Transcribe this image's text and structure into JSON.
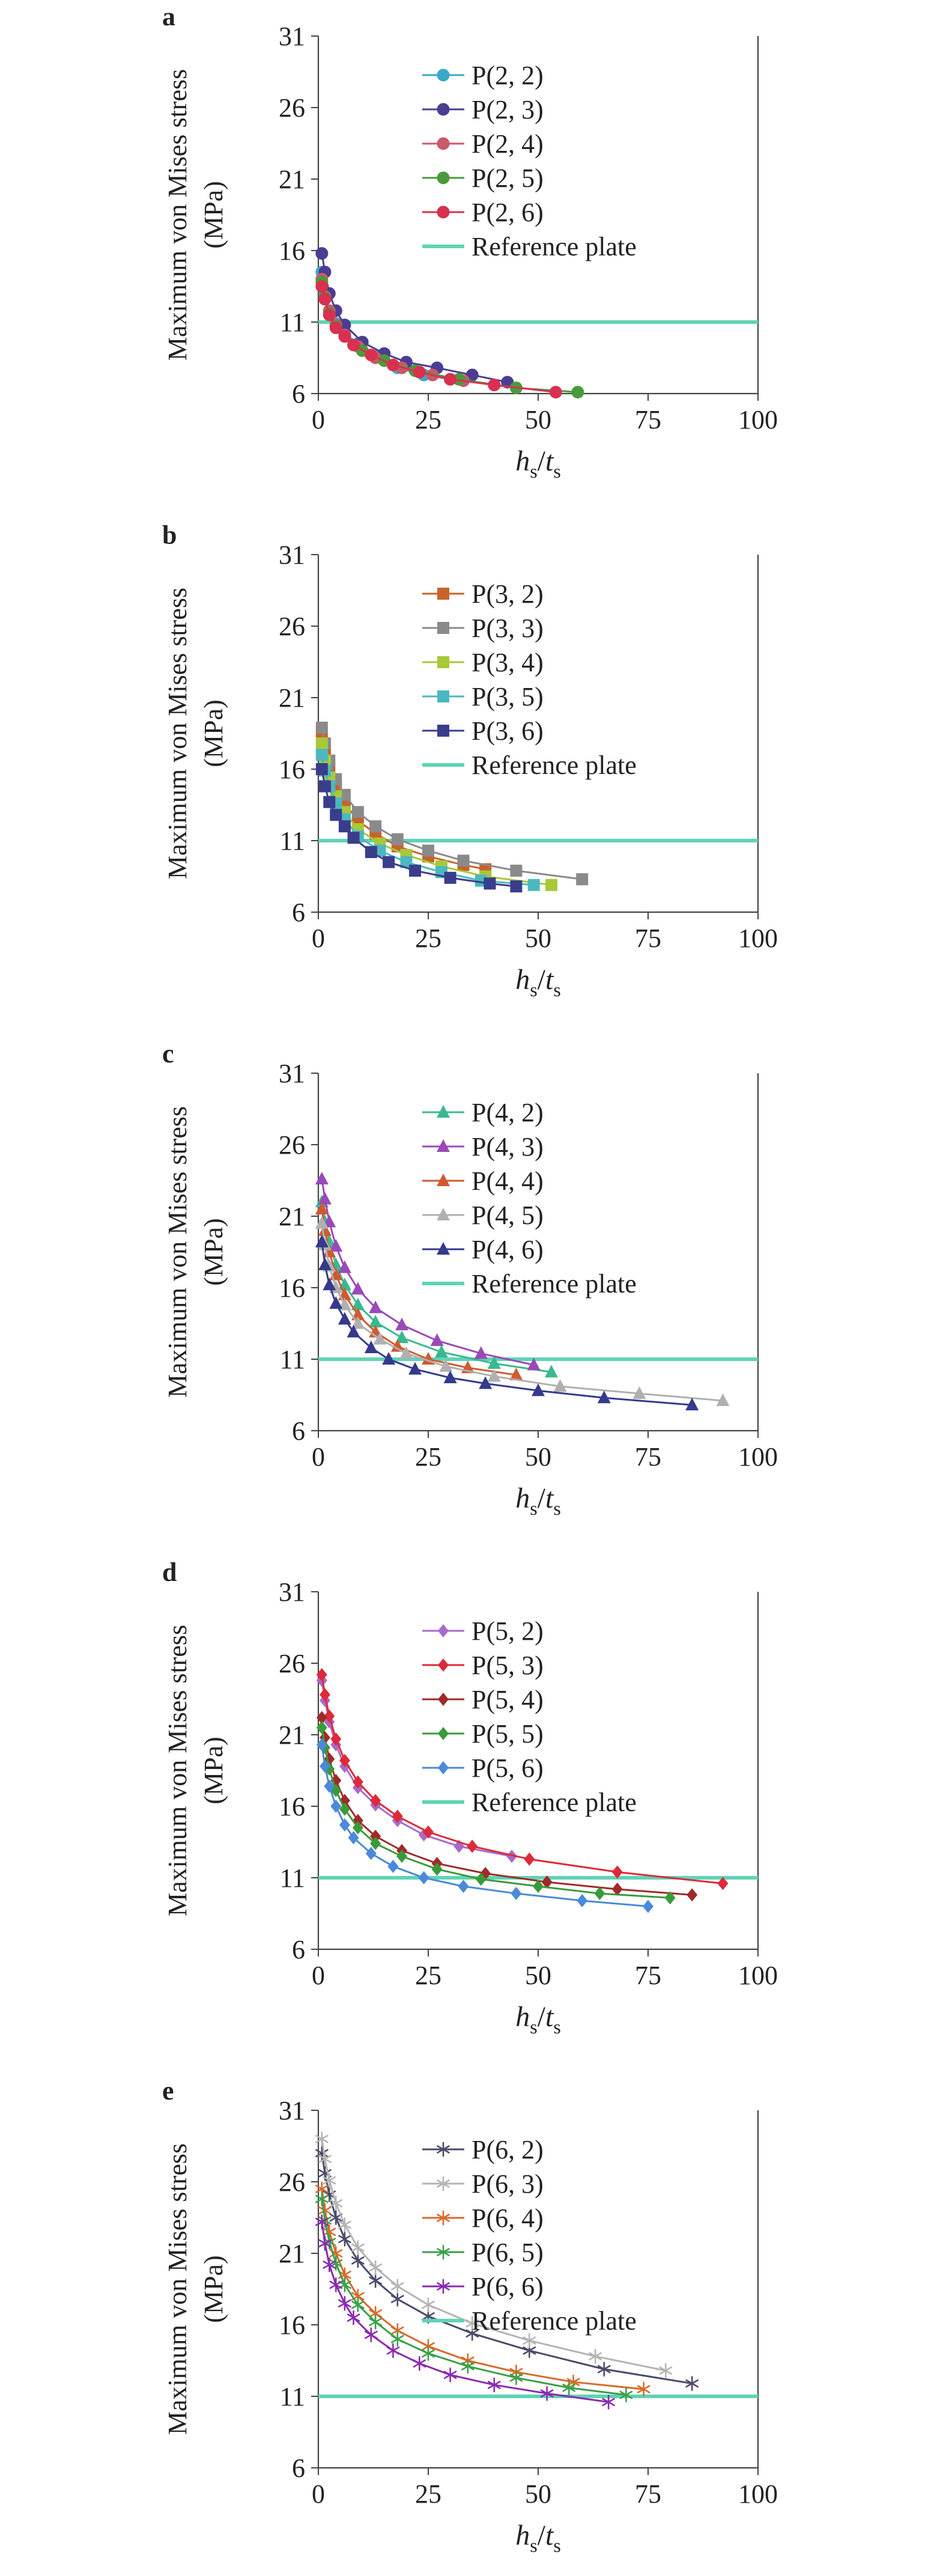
{
  "figure": {
    "ylabel_line1": "Maximum von Mises stress",
    "ylabel_line2": "(MPa)",
    "xlabel_main_h": "h",
    "xlabel_sub_s": "s",
    "xlabel_slash": "/",
    "xlabel_main_t": "t",
    "colors": {
      "reference": "#5fd4b4",
      "axis": "#444444"
    }
  },
  "chart_data": [
    {
      "panel": "a",
      "type": "line",
      "marker": "circle",
      "xlabel": "hs/ts",
      "ylabel": "Maximum von Mises stress (MPa)",
      "xlim": [
        0,
        100
      ],
      "ylim": [
        6,
        31
      ],
      "xticks": [
        "0",
        "25",
        "50",
        "75",
        "100"
      ],
      "yticks": [
        "6",
        "11",
        "16",
        "21",
        "26",
        "31"
      ],
      "reference": {
        "name": "Reference plate",
        "value": 11.0,
        "color": "#5fd4b4"
      },
      "series": [
        {
          "name": "P(2, 2)",
          "color": "#3aa9c8",
          "x": [
            0.8,
            1.5,
            2.5,
            4,
            6,
            9,
            13,
            18,
            24,
            30
          ],
          "y": [
            14.5,
            13.0,
            11.8,
            10.9,
            10.2,
            9.5,
            8.6,
            7.8,
            7.3,
            7.0
          ]
        },
        {
          "name": "P(2, 3)",
          "color": "#4b3d91",
          "x": [
            0.8,
            1.5,
            2.5,
            4,
            6,
            10,
            15,
            20,
            27,
            35,
            43
          ],
          "y": [
            15.8,
            14.5,
            13.0,
            11.8,
            10.8,
            9.6,
            8.8,
            8.2,
            7.8,
            7.3,
            6.8
          ]
        },
        {
          "name": "P(2, 4)",
          "color": "#c85a6a",
          "x": [
            0.8,
            1.5,
            2.5,
            4,
            6,
            9,
            13,
            19,
            26,
            33
          ],
          "y": [
            14.0,
            12.8,
            11.8,
            10.8,
            10.1,
            9.3,
            8.5,
            7.8,
            7.3,
            6.9
          ]
        },
        {
          "name": "P(2, 5)",
          "color": "#4a9a3c",
          "x": [
            0.8,
            1.5,
            2.5,
            4,
            6,
            10,
            15,
            22,
            32,
            45,
            59
          ],
          "y": [
            13.8,
            12.7,
            11.6,
            10.7,
            10.0,
            9.0,
            8.3,
            7.6,
            7.0,
            6.4,
            6.1
          ]
        },
        {
          "name": "P(2, 6)",
          "color": "#d9304f",
          "x": [
            0.8,
            1.5,
            2.5,
            4,
            6,
            8,
            12,
            17,
            23,
            30,
            40,
            54
          ],
          "y": [
            13.5,
            12.6,
            11.5,
            10.6,
            10.0,
            9.4,
            8.7,
            8.0,
            7.5,
            7.0,
            6.6,
            6.1
          ]
        }
      ]
    },
    {
      "panel": "b",
      "type": "line",
      "marker": "square",
      "xlabel": "hs/ts",
      "ylabel": "Maximum von Mises stress (MPa)",
      "xlim": [
        0,
        100
      ],
      "ylim": [
        6,
        31
      ],
      "xticks": [
        "0",
        "25",
        "50",
        "75",
        "100"
      ],
      "yticks": [
        "6",
        "11",
        "16",
        "21",
        "26",
        "31"
      ],
      "reference": {
        "name": "Reference plate",
        "value": 11.0,
        "color": "#5fd4b4"
      },
      "series": [
        {
          "name": "P(3, 2)",
          "color": "#c8622a",
          "x": [
            0.8,
            1.5,
            2.5,
            4,
            6,
            9,
            13,
            18,
            25,
            33,
            38
          ],
          "y": [
            18.5,
            17.3,
            16.1,
            14.8,
            13.6,
            12.4,
            11.5,
            10.6,
            9.9,
            9.3,
            9.0
          ]
        },
        {
          "name": "P(3, 3)",
          "color": "#8a8a8a",
          "x": [
            0.8,
            1.5,
            2.5,
            4,
            6,
            9,
            13,
            18,
            25,
            33,
            45,
            60
          ],
          "y": [
            18.9,
            17.8,
            16.6,
            15.3,
            14.2,
            13.0,
            12.0,
            11.1,
            10.3,
            9.6,
            8.9,
            8.3
          ]
        },
        {
          "name": "P(3, 4)",
          "color": "#a8c838",
          "x": [
            0.8,
            1.5,
            2.5,
            4,
            6,
            9,
            14,
            20,
            28,
            38,
            53
          ],
          "y": [
            17.8,
            16.6,
            15.4,
            14.1,
            13.0,
            11.8,
            10.8,
            10.0,
            9.2,
            8.5,
            7.9
          ]
        },
        {
          "name": "P(3, 5)",
          "color": "#4bb8c0",
          "x": [
            0.8,
            1.5,
            2.5,
            4,
            6,
            9,
            14,
            20,
            28,
            37,
            49
          ],
          "y": [
            17.0,
            15.9,
            14.8,
            13.6,
            12.5,
            11.3,
            10.3,
            9.5,
            8.8,
            8.2,
            7.9
          ]
        },
        {
          "name": "P(3, 6)",
          "color": "#3a3d8c",
          "x": [
            0.8,
            1.5,
            2.5,
            4,
            6,
            8,
            12,
            16,
            22,
            30,
            39,
            45
          ],
          "y": [
            16.0,
            14.8,
            13.7,
            12.8,
            12.0,
            11.2,
            10.2,
            9.5,
            8.9,
            8.4,
            8.0,
            7.8
          ]
        }
      ]
    },
    {
      "panel": "c",
      "type": "line",
      "marker": "triangle",
      "xlabel": "hs/ts",
      "ylabel": "Maximum von Mises stress (MPa)",
      "xlim": [
        0,
        100
      ],
      "ylim": [
        6,
        31
      ],
      "xticks": [
        "0",
        "25",
        "50",
        "75",
        "100"
      ],
      "yticks": [
        "6",
        "11",
        "16",
        "21",
        "26",
        "31"
      ],
      "reference": {
        "name": "Reference plate",
        "value": 11.0,
        "color": "#5fd4b4"
      },
      "series": [
        {
          "name": "P(4, 2)",
          "color": "#3ab890",
          "x": [
            0.8,
            1.5,
            2.5,
            4,
            6,
            9,
            13,
            19,
            28,
            40,
            53
          ],
          "y": [
            22.0,
            20.6,
            19.2,
            17.6,
            16.2,
            14.8,
            13.6,
            12.5,
            11.5,
            10.7,
            10.1
          ]
        },
        {
          "name": "P(4, 3)",
          "color": "#9a4ab8",
          "x": [
            0.8,
            1.5,
            2.5,
            4,
            6,
            9,
            13,
            19,
            27,
            37,
            49
          ],
          "y": [
            23.6,
            22.2,
            20.6,
            18.9,
            17.4,
            15.9,
            14.6,
            13.4,
            12.3,
            11.4,
            10.6
          ]
        },
        {
          "name": "P(4, 4)",
          "color": "#d05a30",
          "x": [
            0.8,
            1.5,
            2.5,
            4,
            6,
            9,
            13,
            18,
            25,
            34,
            45
          ],
          "y": [
            21.5,
            20.0,
            18.5,
            16.9,
            15.5,
            14.1,
            12.9,
            11.9,
            11.0,
            10.4,
            9.9
          ]
        },
        {
          "name": "P(4, 5)",
          "color": "#b0b0b0",
          "x": [
            0.8,
            1.5,
            2.5,
            4,
            6,
            9,
            14,
            20,
            29,
            40,
            55,
            73,
            92
          ],
          "y": [
            20.5,
            19.0,
            17.5,
            16.0,
            14.8,
            13.5,
            12.4,
            11.4,
            10.5,
            9.8,
            9.1,
            8.6,
            8.1
          ]
        },
        {
          "name": "P(4, 6)",
          "color": "#343a8c",
          "x": [
            0.8,
            1.5,
            2.5,
            4,
            6,
            8,
            12,
            16,
            22,
            30,
            38,
            50,
            65,
            85
          ],
          "y": [
            19.2,
            17.6,
            16.2,
            14.9,
            13.8,
            12.9,
            11.8,
            11.0,
            10.3,
            9.7,
            9.3,
            8.8,
            8.3,
            7.8
          ]
        }
      ]
    },
    {
      "panel": "d",
      "type": "line",
      "marker": "diamond",
      "xlabel": "hs/ts",
      "ylabel": "Maximum von Mises stress (MPa)",
      "xlim": [
        0,
        100
      ],
      "ylim": [
        6,
        31
      ],
      "xticks": [
        "0",
        "25",
        "50",
        "75",
        "100"
      ],
      "yticks": [
        "6",
        "11",
        "16",
        "21",
        "26",
        "31"
      ],
      "reference": {
        "name": "Reference plate",
        "value": 11.0,
        "color": "#5fd4b4"
      },
      "series": [
        {
          "name": "P(5, 2)",
          "color": "#a86ac8",
          "x": [
            0.8,
            1.5,
            2.5,
            4,
            6,
            9,
            13,
            18,
            24,
            32,
            44
          ],
          "y": [
            24.8,
            23.4,
            21.9,
            20.3,
            18.8,
            17.3,
            16.1,
            15.0,
            14.0,
            13.2,
            12.5
          ]
        },
        {
          "name": "P(5, 3)",
          "color": "#dd2a3a",
          "x": [
            0.8,
            1.5,
            2.5,
            4,
            6,
            9,
            13,
            18,
            25,
            35,
            48,
            68,
            92
          ],
          "y": [
            25.2,
            23.8,
            22.3,
            20.7,
            19.2,
            17.7,
            16.4,
            15.3,
            14.2,
            13.2,
            12.3,
            11.4,
            10.6
          ]
        },
        {
          "name": "P(5, 4)",
          "color": "#a02a2a",
          "x": [
            0.8,
            1.5,
            2.5,
            4,
            6,
            9,
            13,
            19,
            27,
            38,
            52,
            68,
            85
          ],
          "y": [
            22.2,
            20.8,
            19.3,
            17.8,
            16.4,
            15.0,
            13.9,
            12.9,
            12.0,
            11.3,
            10.7,
            10.2,
            9.8
          ]
        },
        {
          "name": "P(5, 5)",
          "color": "#3a9a3a",
          "x": [
            0.8,
            1.5,
            2.5,
            4,
            6,
            9,
            13,
            19,
            27,
            37,
            50,
            64,
            80
          ],
          "y": [
            21.5,
            20.1,
            18.6,
            17.1,
            15.8,
            14.5,
            13.4,
            12.5,
            11.6,
            10.9,
            10.4,
            9.9,
            9.6
          ]
        },
        {
          "name": "P(5, 6)",
          "color": "#4a8ad8",
          "x": [
            0.8,
            1.5,
            2.5,
            4,
            6,
            8,
            12,
            17,
            24,
            33,
            45,
            60,
            75
          ],
          "y": [
            20.3,
            18.8,
            17.4,
            16.0,
            14.7,
            13.8,
            12.7,
            11.8,
            11.0,
            10.4,
            9.9,
            9.4,
            9.0
          ]
        }
      ]
    },
    {
      "panel": "e",
      "type": "line",
      "marker": "star",
      "xlabel": "hs/ts",
      "ylabel": "Maximum von Mises stress (MPa)",
      "xlim": [
        0,
        100
      ],
      "ylim": [
        6,
        31
      ],
      "xticks": [
        "0",
        "25",
        "50",
        "75",
        "100"
      ],
      "yticks": [
        "6",
        "11",
        "16",
        "21",
        "26",
        "31"
      ],
      "reference": {
        "name": "Reference plate",
        "value": 11.0,
        "color": "#5fd4b4"
      },
      "series": [
        {
          "name": "P(6, 2)",
          "color": "#4a4a6a",
          "x": [
            0.8,
            1.5,
            2.5,
            4,
            6,
            9,
            13,
            18,
            25,
            35,
            48,
            65,
            85
          ],
          "y": [
            28.0,
            26.6,
            25.1,
            23.5,
            22.0,
            20.5,
            19.1,
            17.8,
            16.6,
            15.4,
            14.2,
            12.9,
            11.9
          ]
        },
        {
          "name": "P(6, 3)",
          "color": "#b4b4b4",
          "x": [
            0.8,
            1.5,
            2.5,
            4,
            6,
            9,
            13,
            18,
            25,
            35,
            48,
            63,
            79
          ],
          "y": [
            29.0,
            27.6,
            26.1,
            24.5,
            23.0,
            21.4,
            20.0,
            18.7,
            17.4,
            16.1,
            14.9,
            13.8,
            12.8
          ]
        },
        {
          "name": "P(6, 4)",
          "color": "#d86a2a",
          "x": [
            0.8,
            1.5,
            2.5,
            4,
            6,
            9,
            13,
            18,
            25,
            34,
            45,
            58,
            74
          ],
          "y": [
            25.5,
            24.0,
            22.5,
            21.0,
            19.5,
            18.0,
            16.8,
            15.6,
            14.5,
            13.5,
            12.7,
            12.0,
            11.5
          ]
        },
        {
          "name": "P(6, 5)",
          "color": "#3aa04a",
          "x": [
            0.8,
            1.5,
            2.5,
            4,
            6,
            9,
            13,
            18,
            25,
            34,
            45,
            57,
            70
          ],
          "y": [
            24.8,
            23.3,
            21.8,
            20.3,
            18.8,
            17.4,
            16.2,
            15.0,
            14.0,
            13.1,
            12.3,
            11.6,
            11.1
          ]
        },
        {
          "name": "P(6, 6)",
          "color": "#8a2ab0",
          "x": [
            0.8,
            1.5,
            2.5,
            4,
            6,
            8,
            12,
            17,
            23,
            30,
            40,
            52,
            66
          ],
          "y": [
            23.2,
            21.7,
            20.2,
            18.8,
            17.5,
            16.5,
            15.3,
            14.2,
            13.3,
            12.5,
            11.8,
            11.2,
            10.6
          ]
        }
      ]
    }
  ]
}
